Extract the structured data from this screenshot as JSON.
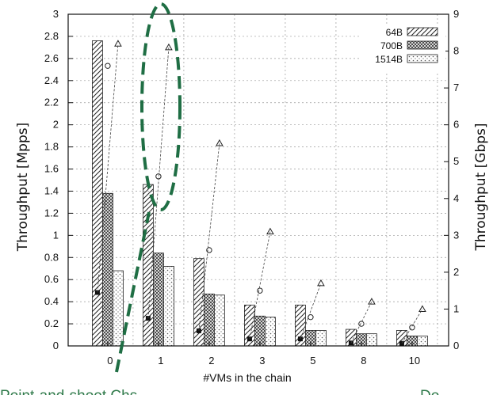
{
  "chart_data": {
    "type": "bar",
    "title": "",
    "xlabel": "#VMs in the chain",
    "ylabel": "Throughput [Mpps]",
    "y2label": "Throughput [Gbps]",
    "categories": [
      "0",
      "1",
      "2",
      "3",
      "5",
      "8",
      "10"
    ],
    "ylim": [
      0,
      3
    ],
    "y2lim": [
      0,
      9
    ],
    "yticks": [
      "0",
      "0.2",
      "0.4",
      "0.6",
      "0.8",
      "1",
      "1.2",
      "1.4",
      "1.6",
      "1.8",
      "2",
      "2.2",
      "2.4",
      "2.6",
      "2.8",
      "3"
    ],
    "y2ticks": [
      "0",
      "1",
      "2",
      "3",
      "4",
      "5",
      "6",
      "7",
      "8",
      "9"
    ],
    "grid": true,
    "legend_position": "top-right",
    "series": [
      {
        "name": "64B",
        "values": [
          2.76,
          1.46,
          0.79,
          0.37,
          0.37,
          0.15,
          0.14
        ]
      },
      {
        "name": "700B",
        "values": [
          1.38,
          0.84,
          0.47,
          0.27,
          0.14,
          0.11,
          0.09
        ]
      },
      {
        "name": "1514B",
        "values": [
          0.68,
          0.72,
          0.46,
          0.26,
          0.14,
          0.11,
          0.09
        ]
      }
    ],
    "gbps_points": [
      {
        "series": "64B",
        "values": [
          1.45,
          0.75,
          0.41,
          0.19,
          0.19,
          0.08,
          0.07
        ]
      },
      {
        "series": "700B",
        "values": [
          7.6,
          4.6,
          2.6,
          1.5,
          0.78,
          0.6,
          0.5
        ]
      },
      {
        "series": "1514B",
        "values": [
          8.2,
          8.1,
          5.5,
          3.1,
          1.7,
          1.2,
          1.0
        ]
      }
    ],
    "annotations": [
      "dashed green ellipse around category 1",
      "dashed green arrow"
    ]
  },
  "caption": {
    "left": "Point-and-shoot Chs",
    "right": "Do"
  },
  "colors": {
    "annotation": "#1f6e44",
    "bar_stroke": "#222222",
    "grid": "#9a9a9a"
  }
}
